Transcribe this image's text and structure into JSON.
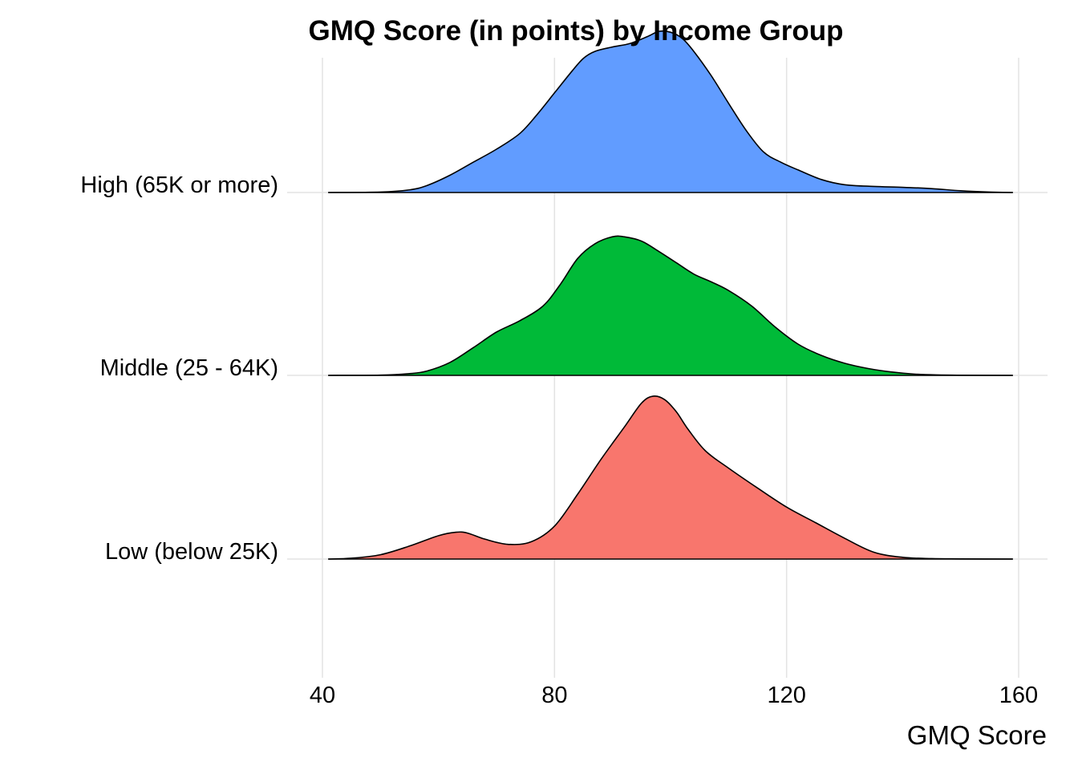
{
  "chart_data": {
    "type": "ridgeline",
    "title": "GMQ Score (in points) by Income Group",
    "xlabel": "GMQ Score",
    "ylabel": "",
    "xlim": [
      40,
      160
    ],
    "x_ticks": [
      40,
      80,
      120,
      160
    ],
    "x_tick_labels": [
      "40",
      "80",
      "120",
      "160"
    ],
    "grid": true,
    "legend": "none",
    "series": [
      {
        "name": "Low (below 25K)",
        "color": "#F8766D",
        "points": [
          [
            41,
            0
          ],
          [
            45,
            0.01
          ],
          [
            50,
            0.05
          ],
          [
            55,
            0.15
          ],
          [
            60,
            0.27
          ],
          [
            63,
            0.31
          ],
          [
            65,
            0.3
          ],
          [
            68,
            0.23
          ],
          [
            72,
            0.17
          ],
          [
            76,
            0.2
          ],
          [
            80,
            0.38
          ],
          [
            84,
            0.75
          ],
          [
            88,
            1.15
          ],
          [
            92,
            1.52
          ],
          [
            95,
            1.8
          ],
          [
            97,
            1.88
          ],
          [
            99,
            1.84
          ],
          [
            101,
            1.7
          ],
          [
            103,
            1.5
          ],
          [
            106,
            1.25
          ],
          [
            110,
            1.05
          ],
          [
            115,
            0.82
          ],
          [
            120,
            0.6
          ],
          [
            125,
            0.42
          ],
          [
            130,
            0.24
          ],
          [
            135,
            0.08
          ],
          [
            140,
            0.02
          ],
          [
            145,
            0.005
          ],
          [
            150,
            0.002
          ],
          [
            159,
            0
          ]
        ]
      },
      {
        "name": "Middle (25 - 64K)",
        "color": "#00BA38",
        "points": [
          [
            41,
            0
          ],
          [
            50,
            0.003
          ],
          [
            55,
            0.02
          ],
          [
            58,
            0.05
          ],
          [
            62,
            0.15
          ],
          [
            66,
            0.32
          ],
          [
            70,
            0.5
          ],
          [
            74,
            0.63
          ],
          [
            78,
            0.8
          ],
          [
            81,
            1.05
          ],
          [
            84,
            1.35
          ],
          [
            87,
            1.52
          ],
          [
            90,
            1.6
          ],
          [
            92,
            1.6
          ],
          [
            95,
            1.55
          ],
          [
            98,
            1.43
          ],
          [
            101,
            1.3
          ],
          [
            104,
            1.17
          ],
          [
            107,
            1.08
          ],
          [
            110,
            0.98
          ],
          [
            114,
            0.8
          ],
          [
            118,
            0.56
          ],
          [
            122,
            0.36
          ],
          [
            126,
            0.23
          ],
          [
            130,
            0.14
          ],
          [
            134,
            0.08
          ],
          [
            138,
            0.04
          ],
          [
            142,
            0.015
          ],
          [
            146,
            0.005
          ],
          [
            150,
            0.002
          ],
          [
            159,
            0
          ]
        ]
      },
      {
        "name": "High (65K or more)",
        "color": "#619CFF",
        "points": [
          [
            41,
            0
          ],
          [
            50,
            0.005
          ],
          [
            55,
            0.03
          ],
          [
            58,
            0.08
          ],
          [
            62,
            0.2
          ],
          [
            66,
            0.35
          ],
          [
            70,
            0.5
          ],
          [
            74,
            0.68
          ],
          [
            77,
            0.9
          ],
          [
            80,
            1.15
          ],
          [
            83,
            1.4
          ],
          [
            85,
            1.55
          ],
          [
            87,
            1.63
          ],
          [
            90,
            1.68
          ],
          [
            93,
            1.72
          ],
          [
            96,
            1.8
          ],
          [
            98,
            1.86
          ],
          [
            100,
            1.85
          ],
          [
            102,
            1.78
          ],
          [
            104,
            1.63
          ],
          [
            107,
            1.35
          ],
          [
            110,
            1.03
          ],
          [
            113,
            0.72
          ],
          [
            116,
            0.47
          ],
          [
            119,
            0.35
          ],
          [
            122,
            0.26
          ],
          [
            126,
            0.15
          ],
          [
            130,
            0.09
          ],
          [
            135,
            0.07
          ],
          [
            140,
            0.06
          ],
          [
            145,
            0.045
          ],
          [
            150,
            0.02
          ],
          [
            155,
            0.005
          ],
          [
            159,
            0
          ]
        ]
      }
    ]
  }
}
